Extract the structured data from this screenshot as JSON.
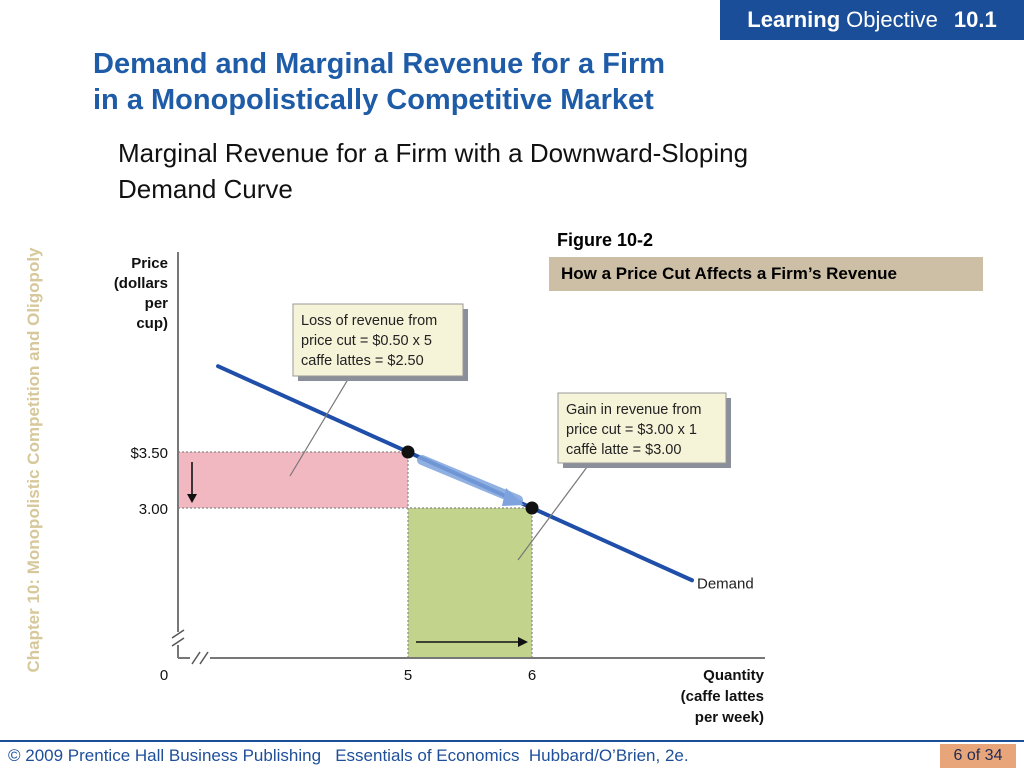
{
  "header": {
    "badge_bold": "Learning",
    "badge_rest": "Objective",
    "badge_number": "10.1",
    "title_line1": "Demand and Marginal Revenue for a Firm",
    "title_line2": "in a Monopolistically Competitive Market",
    "subtitle_line1": "Marginal Revenue for a Firm with a Downward-Sloping",
    "subtitle_line2": "Demand Curve"
  },
  "sidebar": {
    "chapter_text": "Chapter 10:  Monopolistic Competition and Oligopoly"
  },
  "figure": {
    "label": "Figure 10-2",
    "caption": "How a Price Cut Affects a Firm’s Revenue"
  },
  "chart_data": {
    "type": "line",
    "series": [
      {
        "name": "Demand",
        "points": [
          [
            5,
            3.5
          ],
          [
            6,
            3.0
          ]
        ]
      }
    ],
    "highlighted_points": [
      [
        5,
        3.5
      ],
      [
        6,
        3.0
      ]
    ],
    "ylabel_lines": [
      "Price",
      "(dollars",
      "per",
      "cup)"
    ],
    "xlabel_lines": [
      "Quantity",
      "(caffe lattes",
      "per week)"
    ],
    "x_ticks": [
      {
        "value": 0,
        "label": "0"
      },
      {
        "value": 5,
        "label": "5"
      },
      {
        "value": 6,
        "label": "6"
      }
    ],
    "y_ticks": [
      {
        "value": 3.5,
        "label": "$3.50"
      },
      {
        "value": 3.0,
        "label": "3.00"
      }
    ],
    "axis_break": true,
    "regions": [
      {
        "name": "loss",
        "color": "#f2b8c2",
        "x_range": [
          0,
          5
        ],
        "y_range": [
          3.0,
          3.5
        ]
      },
      {
        "name": "gain",
        "color": "#c2d48c",
        "x_range": [
          5,
          6
        ],
        "y_range": [
          0,
          3.0
        ]
      }
    ],
    "annotations": [
      {
        "id": "loss",
        "lines": [
          "Loss of revenue from",
          "price cut = $0.50 x 5",
          "caffe lattes = $2.50"
        ]
      },
      {
        "id": "gain",
        "lines": [
          "Gain in revenue from",
          "price cut = $3.00 x 1",
          "caffè latte = $3.00"
        ]
      }
    ],
    "colors": {
      "demand": "#1f4fa8",
      "loss": "#f2b8c2",
      "gain": "#c2d48c",
      "callout_bg": "#f5f3d8"
    }
  },
  "footer": {
    "text": "© 2009 Prentice Hall Business Publishing   Essentials of Economics  Hubbard/O’Brien, 2e.",
    "page": "6 of 34"
  }
}
